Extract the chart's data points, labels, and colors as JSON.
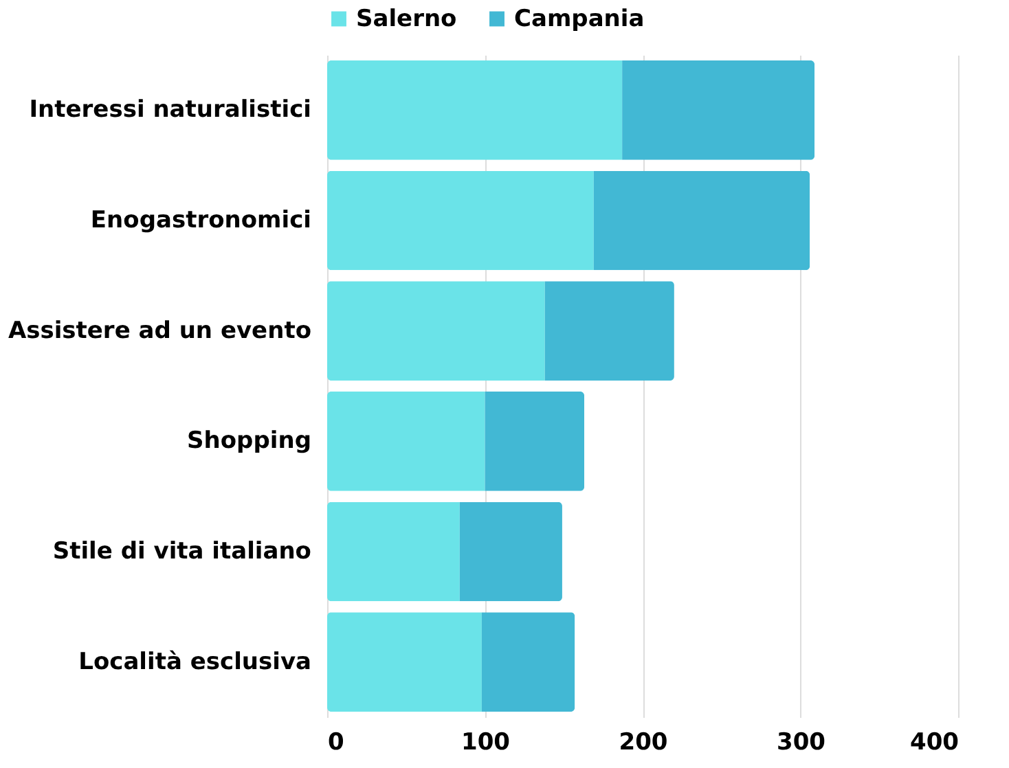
{
  "chart_data": {
    "type": "bar",
    "orientation": "horizontal",
    "stacked": true,
    "categories": [
      "Interessi naturalistici",
      "Enogastronomici",
      "Assistere ad un evento",
      "Shopping",
      "Stile di vita italiano",
      "Località esclusiva"
    ],
    "series": [
      {
        "name": "Salerno",
        "color": "#6ae3e8",
        "values": [
          187,
          169,
          138,
          100,
          84,
          98
        ]
      },
      {
        "name": "Campania",
        "color": "#42b8d4",
        "values": [
          122,
          137,
          82,
          63,
          65,
          59
        ]
      }
    ],
    "xlim": [
      0,
      400
    ],
    "xticks": [
      0,
      100,
      200,
      300,
      400
    ],
    "grid": "x",
    "legend": "top"
  }
}
